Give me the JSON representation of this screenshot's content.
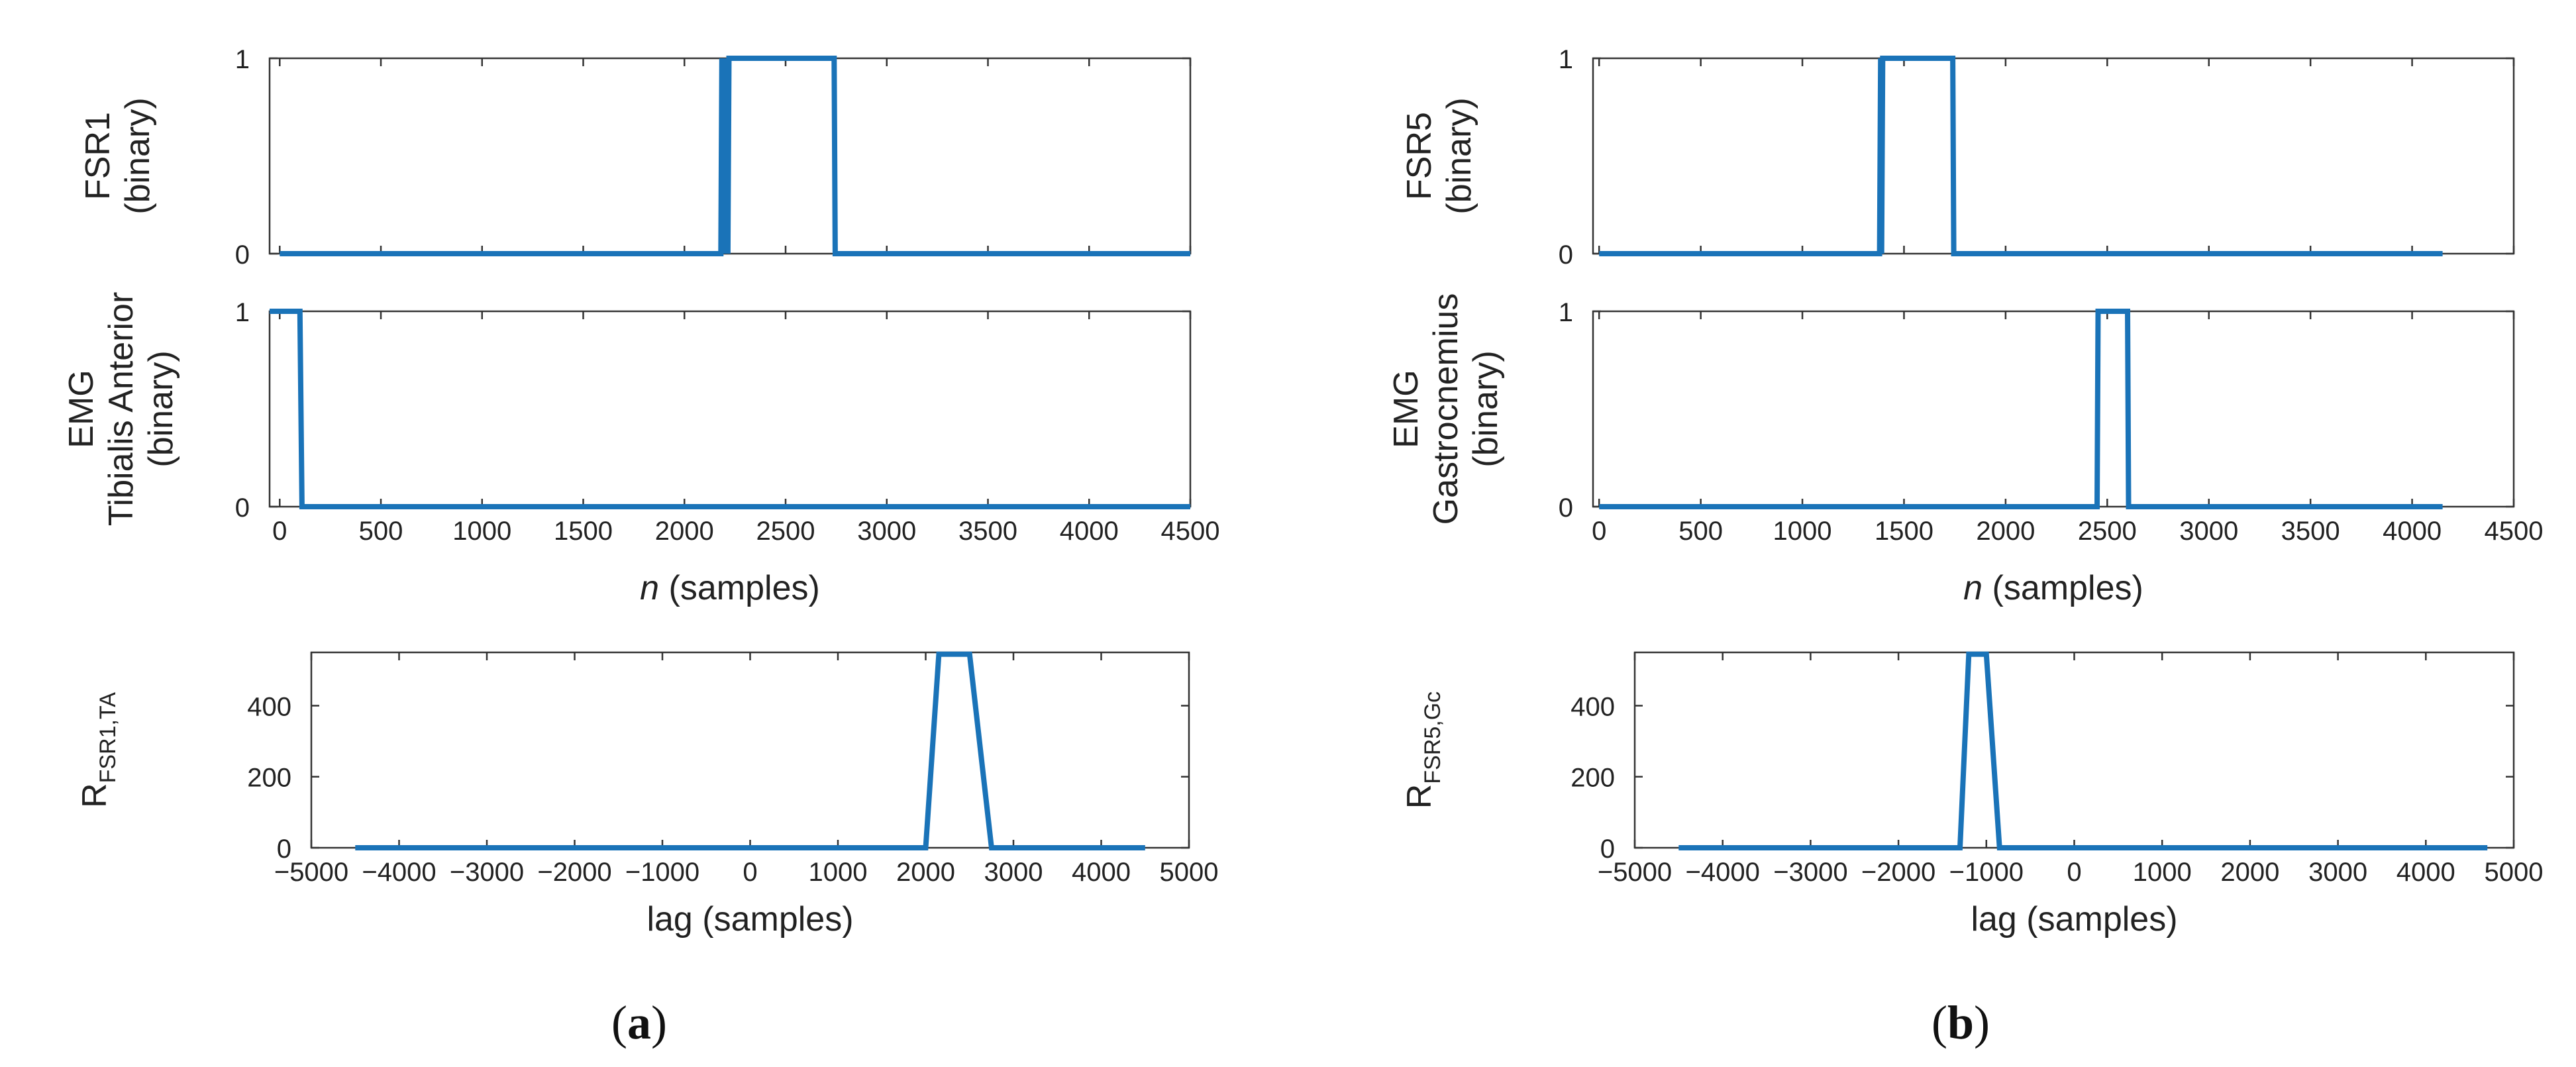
{
  "series_color": "#1a73b8",
  "panel_labels": {
    "a": "a",
    "b": "b"
  },
  "chart_data": [
    {
      "id": "a-fsr",
      "type": "line",
      "ylabel_lines": [
        "FSR1",
        "(binary)"
      ],
      "xlim": [
        -50,
        4500
      ],
      "ylim": [
        0,
        1
      ],
      "yticks": [
        0,
        1
      ],
      "ytick_labels": [
        "0",
        "1"
      ],
      "xticks": [
        0,
        500,
        1000,
        1500,
        2000,
        2500,
        3000,
        3500,
        4000,
        4500
      ],
      "show_xtick_labels": false,
      "x": [
        0,
        2180,
        2185,
        2190,
        2200,
        2205,
        2210,
        2215,
        2220,
        2740,
        2745,
        4500
      ],
      "y": [
        0,
        0,
        1,
        0,
        1,
        0,
        1,
        0,
        1,
        1,
        0,
        0
      ]
    },
    {
      "id": "a-emg",
      "type": "line",
      "ylabel_lines": [
        "EMG",
        "Tibialis Anterior",
        "(binary)"
      ],
      "xlim": [
        -50,
        4500
      ],
      "ylim": [
        0,
        1
      ],
      "yticks": [
        0,
        1
      ],
      "ytick_labels": [
        "0",
        "1"
      ],
      "xticks": [
        0,
        500,
        1000,
        1500,
        2000,
        2500,
        3000,
        3500,
        4000,
        4500
      ],
      "xtick_labels": [
        "0",
        "500",
        "1000",
        "1500",
        "2000",
        "2500",
        "3000",
        "3500",
        "4000",
        "4500"
      ],
      "xlabel_italic": "n",
      "xlabel_rest": " (samples)",
      "x": [
        -50,
        100,
        110,
        4500
      ],
      "y": [
        1,
        1,
        0,
        0
      ]
    },
    {
      "id": "a-corr",
      "type": "line",
      "ylabel_main": "R",
      "ylabel_sub": "FSR1,TA",
      "xlim": [
        -5000,
        5000
      ],
      "ylim": [
        0,
        550
      ],
      "yticks": [
        0,
        200,
        400
      ],
      "ytick_labels": [
        "0",
        "200",
        "400"
      ],
      "xticks": [
        -5000,
        -4000,
        -3000,
        -2000,
        -1000,
        0,
        1000,
        2000,
        3000,
        4000,
        5000
      ],
      "xtick_labels": [
        "−5000",
        "−4000",
        "−3000",
        "−2000",
        "−1000",
        "0",
        "1000",
        "2000",
        "3000",
        "4000",
        "5000"
      ],
      "xlabel": "lag (samples)",
      "x": [
        -4500,
        2000,
        2150,
        2500,
        2750,
        4500
      ],
      "y": [
        0,
        0,
        545,
        545,
        0,
        0
      ]
    },
    {
      "id": "b-fsr",
      "type": "line",
      "ylabel_lines": [
        "FSR5",
        "(binary)"
      ],
      "xlim": [
        -30,
        4500
      ],
      "ylim": [
        0,
        1
      ],
      "yticks": [
        0,
        1
      ],
      "ytick_labels": [
        "0",
        "1"
      ],
      "xticks": [
        0,
        500,
        1000,
        1500,
        2000,
        2500,
        3000,
        3500,
        4000,
        4500
      ],
      "show_xtick_labels": false,
      "x": [
        0,
        1380,
        1385,
        1390,
        1395,
        1400,
        1740,
        1745,
        4150
      ],
      "y": [
        0,
        0,
        1,
        0,
        1,
        1,
        1,
        0,
        0
      ]
    },
    {
      "id": "b-emg",
      "type": "line",
      "ylabel_lines": [
        "EMG",
        "Gastrocnemius",
        "(binary)"
      ],
      "xlim": [
        -30,
        4500
      ],
      "ylim": [
        0,
        1
      ],
      "yticks": [
        0,
        1
      ],
      "ytick_labels": [
        "0",
        "1"
      ],
      "xticks": [
        0,
        500,
        1000,
        1500,
        2000,
        2500,
        3000,
        3500,
        4000,
        4500
      ],
      "xtick_labels": [
        "0",
        "500",
        "1000",
        "1500",
        "2000",
        "2500",
        "3000",
        "3500",
        "4000",
        "4500"
      ],
      "xlabel_italic": "n",
      "xlabel_rest": " (samples)",
      "x": [
        0,
        2450,
        2455,
        2600,
        2605,
        4150
      ],
      "y": [
        0,
        0,
        1,
        1,
        0,
        0
      ]
    },
    {
      "id": "b-corr",
      "type": "line",
      "ylabel_main": "R",
      "ylabel_sub": "FSR5,Gc",
      "xlim": [
        -5000,
        5000
      ],
      "ylim": [
        0,
        550
      ],
      "yticks": [
        0,
        200,
        400
      ],
      "ytick_labels": [
        "0",
        "200",
        "400"
      ],
      "xticks": [
        -5000,
        -4000,
        -3000,
        -2000,
        -1000,
        0,
        1000,
        2000,
        3000,
        4000,
        5000
      ],
      "xtick_labels": [
        "−5000",
        "−4000",
        "−3000",
        "−2000",
        "−1000",
        "0",
        "1000",
        "2000",
        "3000",
        "4000",
        "5000"
      ],
      "xlabel": "lag (samples)",
      "x": [
        -4500,
        -1300,
        -1200,
        -1000,
        -850,
        4700
      ],
      "y": [
        0,
        0,
        545,
        545,
        0,
        0
      ]
    }
  ]
}
